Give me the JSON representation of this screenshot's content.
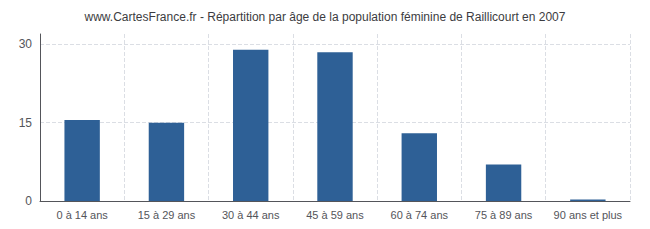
{
  "chart_data": {
    "type": "bar",
    "title": "www.CartesFrance.fr - Répartition par âge de la population féminine de Raillicourt en 2007",
    "categories": [
      "0 à 14 ans",
      "15 à 29 ans",
      "30 à 44 ans",
      "45 à 59 ans",
      "60 à 74 ans",
      "75 à 89 ans",
      "90 ans et plus"
    ],
    "values": [
      15.5,
      15.0,
      29.0,
      28.5,
      13.0,
      7.0,
      0.3
    ],
    "color": "#2e6096",
    "ylim": [
      0,
      32
    ],
    "yticks": [
      0,
      15,
      30
    ],
    "grid": true
  }
}
